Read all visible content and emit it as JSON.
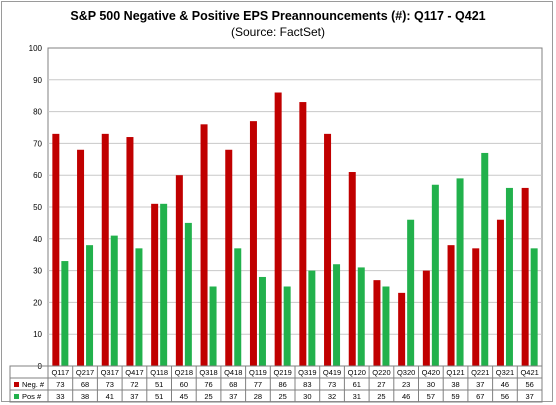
{
  "chart_data": {
    "type": "bar",
    "title": "S&P 500 Negative & Positive EPS Preannouncements (#): Q117 - Q421",
    "subtitle": "(Source: FactSet)",
    "categories": [
      "Q117",
      "Q217",
      "Q317",
      "Q417",
      "Q118",
      "Q218",
      "Q318",
      "Q418",
      "Q119",
      "Q219",
      "Q319",
      "Q419",
      "Q120",
      "Q220",
      "Q320",
      "Q420",
      "Q121",
      "Q221",
      "Q321",
      "Q421"
    ],
    "series": [
      {
        "name": "Neg. #",
        "color": "#c00000",
        "values": [
          73,
          68,
          73,
          72,
          51,
          60,
          76,
          68,
          77,
          86,
          83,
          73,
          61,
          27,
          23,
          30,
          38,
          37,
          46,
          56
        ]
      },
      {
        "name": "Pos #",
        "color": "#22b14c",
        "values": [
          33,
          38,
          41,
          37,
          51,
          45,
          25,
          37,
          28,
          25,
          30,
          32,
          31,
          25,
          46,
          57,
          59,
          67,
          56,
          37
        ]
      }
    ],
    "ylim": [
      0,
      100
    ],
    "yticks": [
      0,
      10,
      20,
      30,
      40,
      50,
      60,
      70,
      80,
      90,
      100
    ],
    "grid": true,
    "legend": "data-table-below"
  }
}
